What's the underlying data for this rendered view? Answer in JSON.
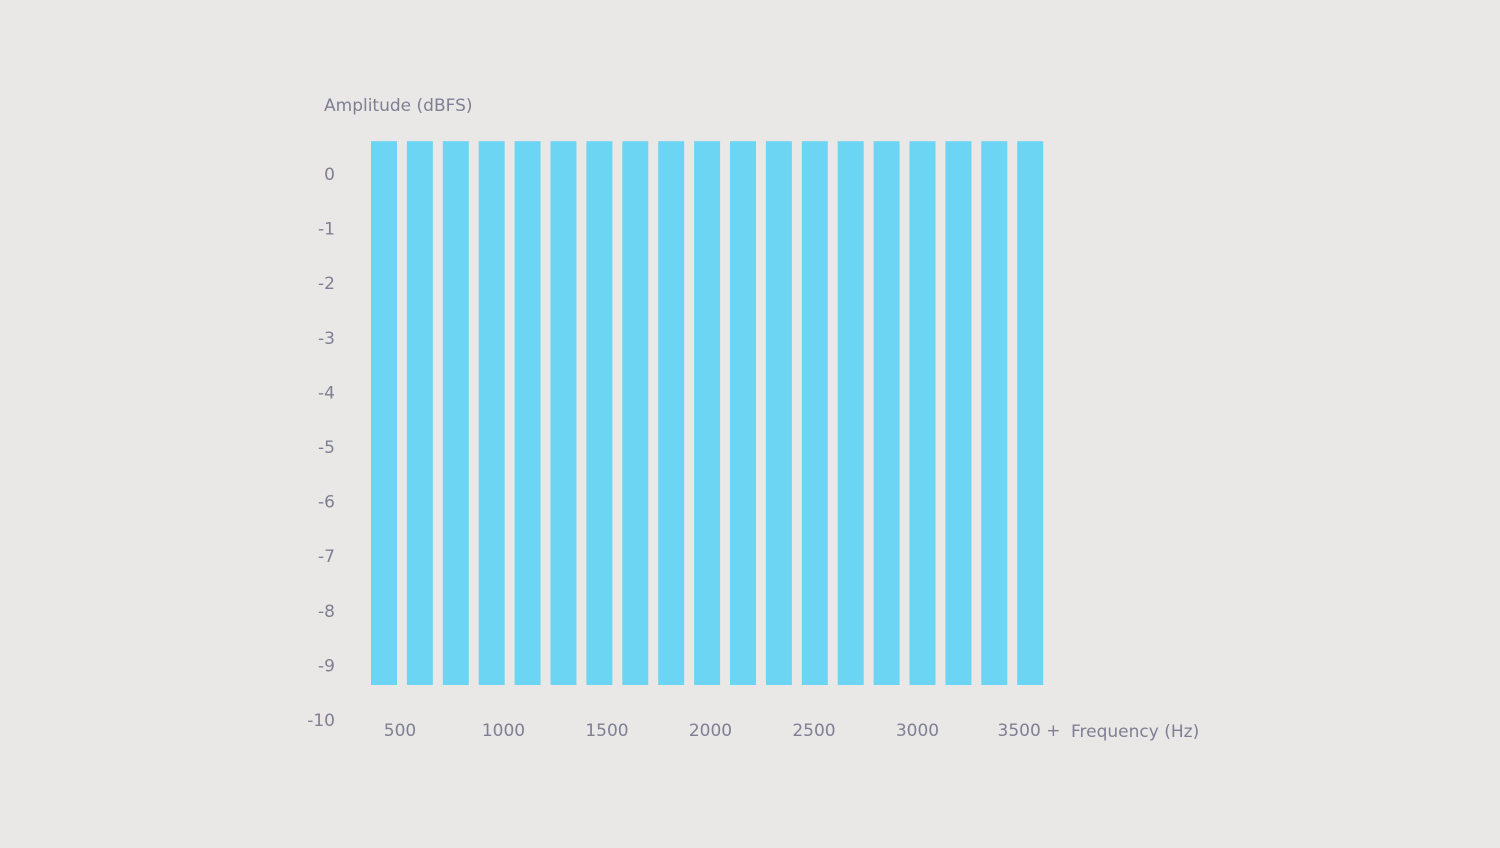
{
  "chart_data": {
    "type": "bar",
    "ylabel": "Amplitude (dBFS)",
    "xlabel": "Frequency (Hz)",
    "y_ticks": [
      "0",
      "-1",
      "-2",
      "-3",
      "-4",
      "-5",
      "-6",
      "-7",
      "-8",
      "-9",
      "-10"
    ],
    "x_ticks": [
      "500",
      "1000",
      "1500",
      "2000",
      "2500",
      "3000",
      "3500 +"
    ],
    "ylim": [
      -10,
      0.6
    ],
    "bar_count": 19,
    "values": [
      0.6,
      0.6,
      0.6,
      0.6,
      0.6,
      0.6,
      0.6,
      0.6,
      0.6,
      0.6,
      0.6,
      0.6,
      0.6,
      0.6,
      0.6,
      0.6,
      0.6,
      0.6,
      0.6
    ],
    "bar_color": "#6dd5f4",
    "text_color": "#7e7f93",
    "background": "#eae8e6",
    "grid": false
  }
}
